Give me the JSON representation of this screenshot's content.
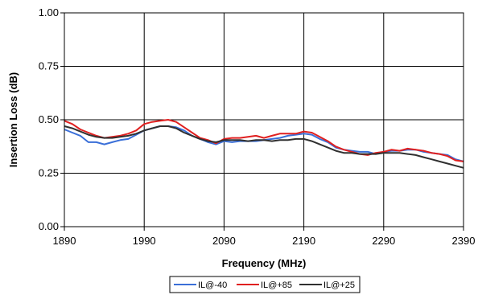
{
  "chart_data": {
    "type": "line",
    "title": "",
    "xlabel": "Frequency (MHz)",
    "ylabel": "Insertion Loss (dB)",
    "xlim": [
      1890,
      2390
    ],
    "ylim": [
      0,
      1
    ],
    "xticks": [
      "1890",
      "1990",
      "2090",
      "2190",
      "2290",
      "2390"
    ],
    "yticks": [
      "0.00",
      "0.25",
      "0.50",
      "0.75",
      "1.00"
    ],
    "grid": true,
    "legend_position": "bottom",
    "series": [
      {
        "name": "IL@-40",
        "color": "#3a6fd8",
        "points": [
          [
            1890,
            0.455
          ],
          [
            1900,
            0.44
          ],
          [
            1910,
            0.425
          ],
          [
            1920,
            0.395
          ],
          [
            1930,
            0.395
          ],
          [
            1940,
            0.385
          ],
          [
            1950,
            0.395
          ],
          [
            1960,
            0.405
          ],
          [
            1970,
            0.41
          ],
          [
            1980,
            0.43
          ],
          [
            1990,
            0.45
          ],
          [
            2000,
            0.46
          ],
          [
            2010,
            0.47
          ],
          [
            2020,
            0.47
          ],
          [
            2030,
            0.465
          ],
          [
            2040,
            0.45
          ],
          [
            2050,
            0.425
          ],
          [
            2060,
            0.41
          ],
          [
            2070,
            0.395
          ],
          [
            2080,
            0.385
          ],
          [
            2090,
            0.4
          ],
          [
            2100,
            0.395
          ],
          [
            2110,
            0.4
          ],
          [
            2120,
            0.4
          ],
          [
            2130,
            0.4
          ],
          [
            2140,
            0.405
          ],
          [
            2150,
            0.41
          ],
          [
            2160,
            0.415
          ],
          [
            2170,
            0.425
          ],
          [
            2180,
            0.43
          ],
          [
            2190,
            0.435
          ],
          [
            2200,
            0.43
          ],
          [
            2210,
            0.41
          ],
          [
            2220,
            0.395
          ],
          [
            2230,
            0.37
          ],
          [
            2240,
            0.36
          ],
          [
            2250,
            0.355
          ],
          [
            2260,
            0.35
          ],
          [
            2270,
            0.35
          ],
          [
            2280,
            0.34
          ],
          [
            2290,
            0.35
          ],
          [
            2300,
            0.355
          ],
          [
            2310,
            0.355
          ],
          [
            2320,
            0.36
          ],
          [
            2330,
            0.36
          ],
          [
            2340,
            0.35
          ],
          [
            2350,
            0.345
          ],
          [
            2360,
            0.34
          ],
          [
            2370,
            0.335
          ],
          [
            2380,
            0.315
          ],
          [
            2390,
            0.305
          ]
        ]
      },
      {
        "name": "IL@+85",
        "color": "#e02020",
        "points": [
          [
            1890,
            0.495
          ],
          [
            1900,
            0.48
          ],
          [
            1910,
            0.455
          ],
          [
            1920,
            0.44
          ],
          [
            1930,
            0.425
          ],
          [
            1940,
            0.415
          ],
          [
            1950,
            0.42
          ],
          [
            1960,
            0.425
          ],
          [
            1970,
            0.435
          ],
          [
            1980,
            0.45
          ],
          [
            1990,
            0.48
          ],
          [
            2000,
            0.49
          ],
          [
            2010,
            0.495
          ],
          [
            2020,
            0.5
          ],
          [
            2030,
            0.49
          ],
          [
            2040,
            0.465
          ],
          [
            2050,
            0.44
          ],
          [
            2060,
            0.415
          ],
          [
            2070,
            0.405
          ],
          [
            2080,
            0.39
          ],
          [
            2090,
            0.41
          ],
          [
            2100,
            0.415
          ],
          [
            2110,
            0.415
          ],
          [
            2120,
            0.42
          ],
          [
            2130,
            0.425
          ],
          [
            2140,
            0.415
          ],
          [
            2150,
            0.425
          ],
          [
            2160,
            0.435
          ],
          [
            2170,
            0.435
          ],
          [
            2180,
            0.435
          ],
          [
            2190,
            0.445
          ],
          [
            2200,
            0.44
          ],
          [
            2210,
            0.42
          ],
          [
            2220,
            0.4
          ],
          [
            2230,
            0.375
          ],
          [
            2240,
            0.36
          ],
          [
            2250,
            0.35
          ],
          [
            2260,
            0.34
          ],
          [
            2270,
            0.335
          ],
          [
            2280,
            0.345
          ],
          [
            2290,
            0.35
          ],
          [
            2300,
            0.36
          ],
          [
            2310,
            0.355
          ],
          [
            2320,
            0.365
          ],
          [
            2330,
            0.36
          ],
          [
            2340,
            0.355
          ],
          [
            2350,
            0.345
          ],
          [
            2360,
            0.34
          ],
          [
            2370,
            0.33
          ],
          [
            2380,
            0.31
          ],
          [
            2390,
            0.305
          ]
        ]
      },
      {
        "name": "IL@+25",
        "color": "#303030",
        "points": [
          [
            1890,
            0.47
          ],
          [
            1900,
            0.46
          ],
          [
            1910,
            0.445
          ],
          [
            1920,
            0.43
          ],
          [
            1930,
            0.42
          ],
          [
            1940,
            0.415
          ],
          [
            1950,
            0.415
          ],
          [
            1960,
            0.42
          ],
          [
            1970,
            0.425
          ],
          [
            1980,
            0.435
          ],
          [
            1990,
            0.45
          ],
          [
            2000,
            0.46
          ],
          [
            2010,
            0.47
          ],
          [
            2020,
            0.47
          ],
          [
            2030,
            0.46
          ],
          [
            2040,
            0.44
          ],
          [
            2050,
            0.425
          ],
          [
            2060,
            0.41
          ],
          [
            2070,
            0.4
          ],
          [
            2080,
            0.395
          ],
          [
            2090,
            0.405
          ],
          [
            2100,
            0.405
          ],
          [
            2110,
            0.405
          ],
          [
            2120,
            0.4
          ],
          [
            2130,
            0.405
          ],
          [
            2140,
            0.405
          ],
          [
            2150,
            0.4
          ],
          [
            2160,
            0.405
          ],
          [
            2170,
            0.405
          ],
          [
            2180,
            0.41
          ],
          [
            2190,
            0.41
          ],
          [
            2200,
            0.4
          ],
          [
            2210,
            0.385
          ],
          [
            2220,
            0.37
          ],
          [
            2230,
            0.355
          ],
          [
            2240,
            0.345
          ],
          [
            2250,
            0.345
          ],
          [
            2260,
            0.34
          ],
          [
            2270,
            0.34
          ],
          [
            2280,
            0.34
          ],
          [
            2290,
            0.345
          ],
          [
            2300,
            0.345
          ],
          [
            2310,
            0.345
          ],
          [
            2320,
            0.34
          ],
          [
            2330,
            0.335
          ],
          [
            2340,
            0.325
          ],
          [
            2350,
            0.315
          ],
          [
            2360,
            0.305
          ],
          [
            2370,
            0.295
          ],
          [
            2380,
            0.285
          ],
          [
            2390,
            0.275
          ]
        ]
      }
    ]
  }
}
